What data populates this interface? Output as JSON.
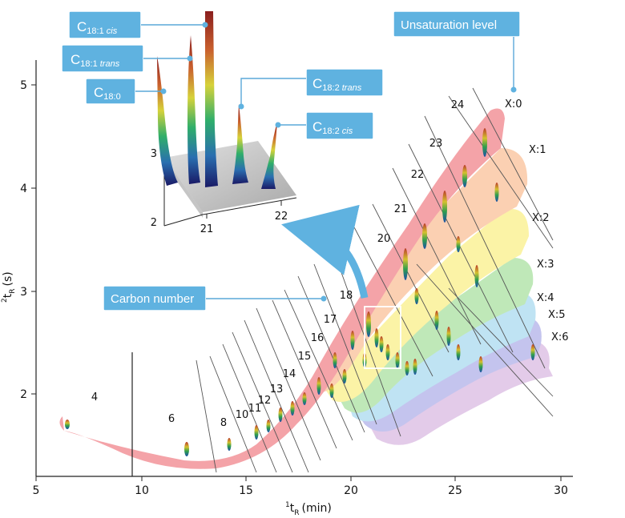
{
  "axes": {
    "x_title_sup": "1",
    "x_title_main": "t",
    "x_title_sub": "R",
    "x_title_unit": "(min)",
    "y_title_sup": "2",
    "y_title_main": "t",
    "y_title_sub": "R",
    "y_title_unit": "(s)",
    "x_ticks": [
      "5",
      "10",
      "15",
      "20",
      "25",
      "30"
    ],
    "y_ticks": [
      "2",
      "3",
      "4",
      "5"
    ]
  },
  "carbon_numbers": [
    "4",
    "6",
    "8",
    "10",
    "11",
    "12",
    "13",
    "14",
    "15",
    "16",
    "17",
    "18",
    "20",
    "21",
    "22",
    "23",
    "24"
  ],
  "unsaturation_levels": [
    "X:0",
    "X:1",
    "X:2",
    "X:3",
    "X:4",
    "X:5",
    "X:6"
  ],
  "callouts": {
    "unsaturation": "Unsaturation level",
    "carbon": "Carbon number",
    "c18_1_cis": {
      "main": "C",
      "sub": "18:1 ",
      "sub_italic": "cis"
    },
    "c18_1_trans": {
      "main": "C",
      "sub": "18:1 ",
      "sub_italic": "trans"
    },
    "c18_0": {
      "main": "C",
      "sub": "18:0",
      "sub_italic": ""
    },
    "c18_2_trans": {
      "main": "C",
      "sub": "18:2 ",
      "sub_italic": "trans"
    },
    "c18_2_cis": {
      "main": "C",
      "sub": "18:2 ",
      "sub_italic": "cis"
    }
  },
  "inset": {
    "x_ticks": [
      "21",
      "22"
    ],
    "y_ticks": [
      "2",
      "3"
    ]
  },
  "colors": {
    "band_x0": "#f4a3a8",
    "band_x1": "#fbd0b2",
    "band_x2": "#fbf3a6",
    "band_x3": "#bfe8b8",
    "band_x4": "#bfe3f3",
    "band_x5": "#c4c4ee",
    "band_x6": "#e3cbe9",
    "callout": "#5fb2e0",
    "arrow": "#5fb2e0"
  }
}
